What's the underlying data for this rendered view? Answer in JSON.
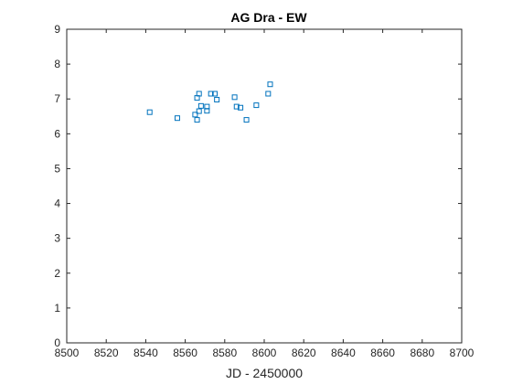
{
  "chart_data": {
    "type": "scatter",
    "title": "AG Dra - EW",
    "xlabel": "JD - 2450000",
    "ylabel": "",
    "xlim": [
      8500,
      8700
    ],
    "ylim": [
      0,
      9
    ],
    "xticks": [
      8500,
      8520,
      8540,
      8560,
      8580,
      8600,
      8620,
      8640,
      8660,
      8680,
      8700
    ],
    "yticks": [
      0,
      1,
      2,
      3,
      4,
      5,
      6,
      7,
      8,
      9
    ],
    "grid": false,
    "marker": "square",
    "color": "#0072BD",
    "points": [
      {
        "x": 8542,
        "y": 6.62
      },
      {
        "x": 8556,
        "y": 6.45
      },
      {
        "x": 8565,
        "y": 6.55
      },
      {
        "x": 8566,
        "y": 7.03
      },
      {
        "x": 8566,
        "y": 6.4
      },
      {
        "x": 8567,
        "y": 7.15
      },
      {
        "x": 8567,
        "y": 6.65
      },
      {
        "x": 8568,
        "y": 6.8
      },
      {
        "x": 8571,
        "y": 6.78
      },
      {
        "x": 8571,
        "y": 6.66
      },
      {
        "x": 8573,
        "y": 7.15
      },
      {
        "x": 8575,
        "y": 7.15
      },
      {
        "x": 8576,
        "y": 6.98
      },
      {
        "x": 8585,
        "y": 7.05
      },
      {
        "x": 8586,
        "y": 6.78
      },
      {
        "x": 8588,
        "y": 6.75
      },
      {
        "x": 8591,
        "y": 6.4
      },
      {
        "x": 8596,
        "y": 6.82
      },
      {
        "x": 8602,
        "y": 7.15
      },
      {
        "x": 8603,
        "y": 7.42
      }
    ]
  }
}
